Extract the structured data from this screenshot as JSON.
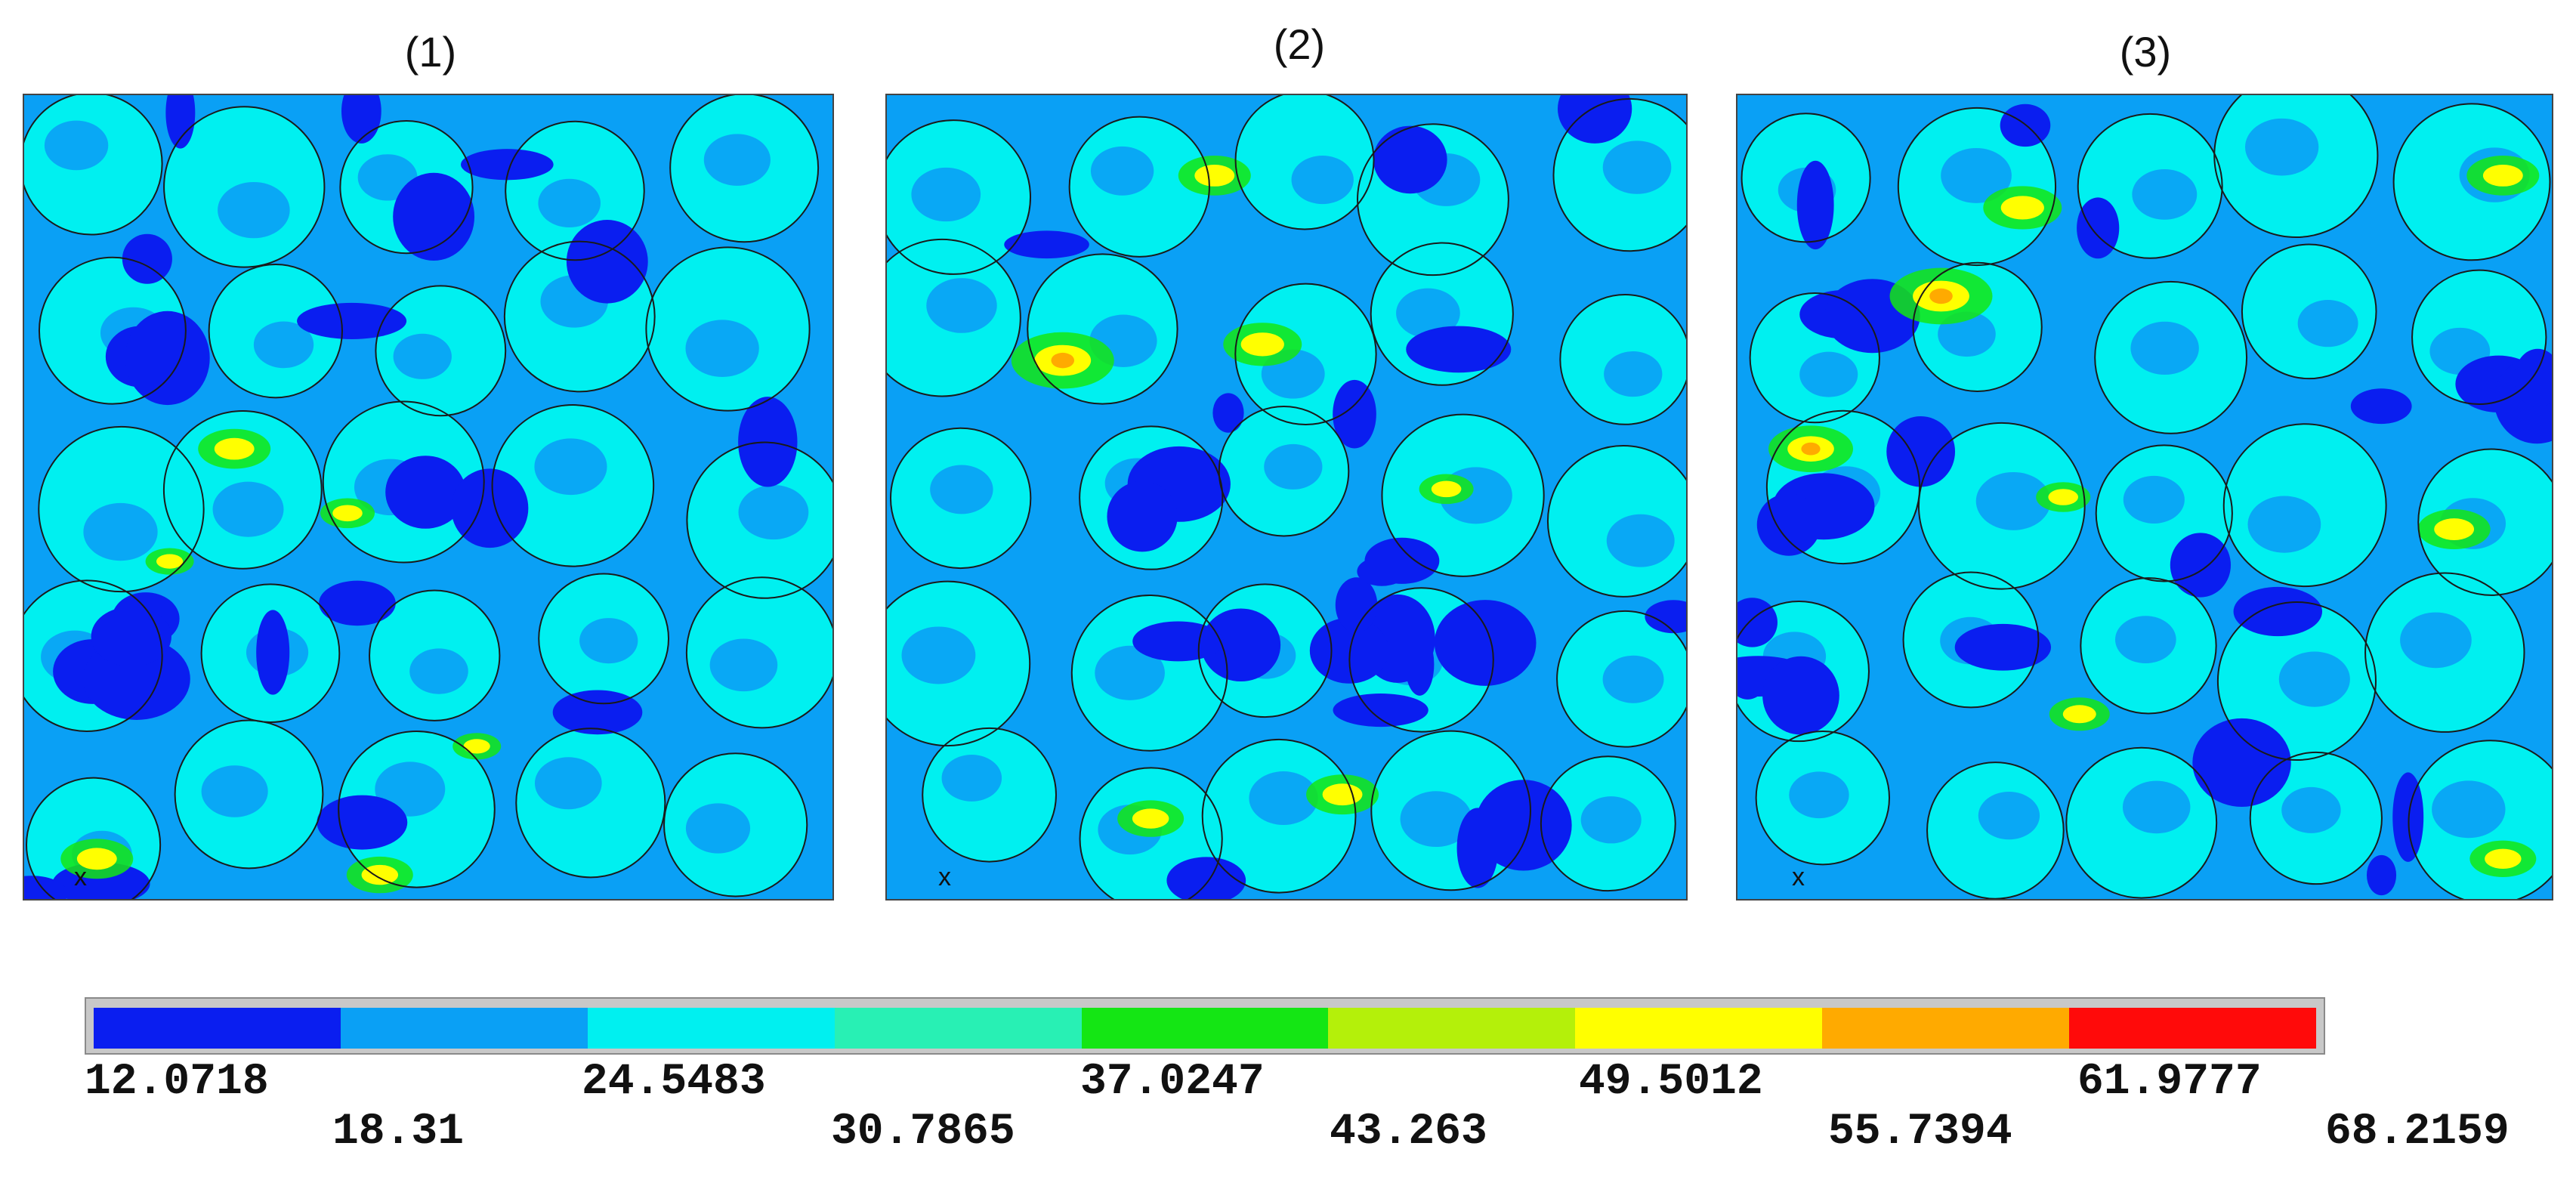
{
  "panels": [
    {
      "title": "(1)",
      "axis_label": "x"
    },
    {
      "title": "(2)",
      "axis_label": "x"
    },
    {
      "title": "(3)",
      "axis_label": "x"
    }
  ],
  "colorbar": {
    "colors": [
      "#0a1ef0",
      "#0aa0f5",
      "#00f0f0",
      "#28f0b4",
      "#14e614",
      "#b4f00a",
      "#ffff00",
      "#ffaa00",
      "#ff0a0a"
    ],
    "ticks": [
      "12.0718",
      "18.31",
      "24.5483",
      "30.7865",
      "37.0247",
      "43.263",
      "49.5012",
      "55.7394",
      "61.9777",
      "68.2159"
    ]
  },
  "palette": {
    "low": "#0a1ef0",
    "midlow": "#0aa0f5",
    "mid": "#00f0f0",
    "green": "#14e614",
    "yellow": "#ffff00",
    "orange": "#ffaa00",
    "red": "#ff0a0a"
  }
}
